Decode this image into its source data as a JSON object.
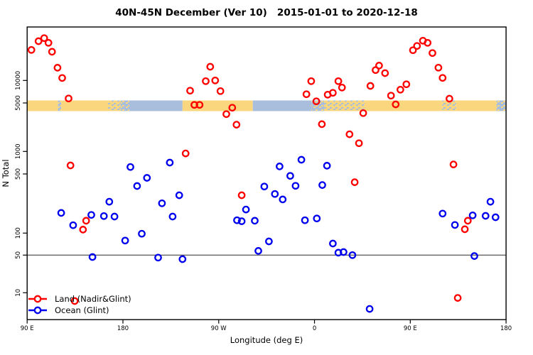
{
  "title": "40N-45N December (Ver 10)   2015-01-01 to 2020-12-18",
  "axes": {
    "x": {
      "label": "Longitude (deg E)",
      "ticks": [
        {
          "deg": 0,
          "label": "90 E"
        },
        {
          "deg": 90,
          "label": "180"
        },
        {
          "deg": 180,
          "label": "90 W"
        },
        {
          "deg": 270,
          "label": "0"
        },
        {
          "deg": 360,
          "label": "90 E"
        },
        {
          "deg": 450,
          "label": "180"
        }
      ]
    },
    "y": {
      "label": "N Total",
      "scale": "log",
      "ticks": [
        {
          "value": 10,
          "label": "10"
        },
        {
          "value": 50,
          "label": "50"
        },
        {
          "value": 100,
          "label": "100"
        },
        {
          "value": 500,
          "label": "500"
        },
        {
          "value": 1000,
          "label": "1000"
        },
        {
          "value": 5000,
          "label": "5000"
        },
        {
          "value": 10000,
          "label": "10000"
        }
      ]
    }
  },
  "legend": {
    "items": [
      {
        "label": "Land (Nadir&Glint)",
        "color": "#FF0000"
      },
      {
        "label": "Ocean (Glint)",
        "color": "#0000EE"
      }
    ]
  },
  "colors": {
    "land_point": "#FF0000",
    "ocean_point": "#0000EE",
    "land_strip": "#FAD77E",
    "ocean_strip": "#A9BEDC",
    "reference_line": "#2B2B2B",
    "axis": "#000000"
  },
  "reference_line": {
    "value": 50
  },
  "map_strip": {
    "center_value": 5000,
    "note_axis_origin_deg_e": 90,
    "segments": [
      {
        "from": 0,
        "to": 29,
        "type": "land"
      },
      {
        "from": 29,
        "to": 32,
        "type": "mixed-ocean"
      },
      {
        "from": 32,
        "to": 76,
        "type": "land"
      },
      {
        "from": 76,
        "to": 88,
        "type": "mixed-land"
      },
      {
        "from": 88,
        "to": 96,
        "type": "mixed-ocean"
      },
      {
        "from": 96,
        "to": 146,
        "type": "ocean"
      },
      {
        "from": 146,
        "to": 212,
        "type": "land"
      },
      {
        "from": 212,
        "to": 267,
        "type": "ocean"
      },
      {
        "from": 267,
        "to": 279,
        "type": "mixed-ocean"
      },
      {
        "from": 279,
        "to": 317,
        "type": "mixed-land"
      },
      {
        "from": 317,
        "to": 390,
        "type": "land"
      },
      {
        "from": 390,
        "to": 403,
        "type": "mixed-land"
      },
      {
        "from": 403,
        "to": 441,
        "type": "land"
      },
      {
        "from": 441,
        "to": 450,
        "type": "mixed-ocean"
      }
    ]
  },
  "chart_data": {
    "type": "scatter",
    "title": "40N-45N December (Ver 10)   2015-01-01 to 2020-12-18",
    "xlabel": "Longitude (deg E)",
    "ylabel": "N Total",
    "y_scale": "log",
    "x_axis": {
      "origin_label": "90 E",
      "span_deg": 450,
      "tick_step_deg": 90
    },
    "ylim": [
      10,
      10000
    ],
    "series": [
      {
        "name": "Land (Nadir&Glint)",
        "color": "#FF0000",
        "points": [
          [
            4,
            25600
          ],
          [
            10.7,
            33500
          ],
          [
            16,
            36800
          ],
          [
            20,
            31900
          ],
          [
            23.4,
            24200
          ],
          [
            28.5,
            14800
          ],
          [
            32.9,
            10800
          ],
          [
            38.9,
            5740
          ],
          [
            40.7,
            650
          ],
          [
            44.7,
            7
          ],
          [
            52.5,
            110
          ],
          [
            55.4,
            140
          ],
          [
            148.9,
            940
          ],
          [
            153.1,
            7300
          ],
          [
            157.1,
            4690
          ],
          [
            162,
            4690
          ],
          [
            167.8,
            9790
          ],
          [
            172,
            15250
          ],
          [
            176.7,
            10000
          ],
          [
            181.6,
            7210
          ],
          [
            187.2,
            3450
          ],
          [
            192.7,
            4270
          ],
          [
            196.7,
            2430
          ],
          [
            201.6,
            280
          ],
          [
            262.4,
            6540
          ],
          [
            266.9,
            9790
          ],
          [
            271.7,
            5260
          ],
          [
            276.9,
            2470
          ],
          [
            282.4,
            6460
          ],
          [
            287.3,
            6840
          ],
          [
            292.4,
            9790
          ],
          [
            295.8,
            8040
          ],
          [
            302.9,
            1770
          ],
          [
            307.8,
            400
          ],
          [
            311.8,
            1315
          ],
          [
            315.8,
            3570
          ],
          [
            322.5,
            8450
          ],
          [
            327.4,
            13770
          ],
          [
            330.7,
            15800
          ],
          [
            336.3,
            12530
          ],
          [
            341.9,
            6260
          ],
          [
            346.3,
            4770
          ],
          [
            350.7,
            7530
          ],
          [
            356.3,
            8880
          ],
          [
            362.5,
            25400
          ],
          [
            366.3,
            28950
          ],
          [
            371.9,
            34000
          ],
          [
            376.3,
            31900
          ],
          [
            380.8,
            23250
          ],
          [
            386.4,
            14820
          ],
          [
            390.4,
            10820
          ],
          [
            396.8,
            5700
          ],
          [
            400.6,
            670
          ],
          [
            404.6,
            8
          ],
          [
            411.3,
            111
          ],
          [
            414.1,
            140
          ]
        ]
      },
      {
        "name": "Ocean (Glint)",
        "color": "#0000EE",
        "points": [
          [
            32,
            173
          ],
          [
            43.2,
            124
          ],
          [
            60.3,
            164
          ],
          [
            61.4,
            46
          ],
          [
            72.1,
            159
          ],
          [
            77.2,
            235
          ],
          [
            82.1,
            157
          ],
          [
            92.1,
            79
          ],
          [
            97,
            620
          ],
          [
            103.3,
            360
          ],
          [
            107.7,
            98
          ],
          [
            112.6,
            450
          ],
          [
            123.1,
            45
          ],
          [
            126.7,
            225
          ],
          [
            134,
            710
          ],
          [
            136.7,
            157
          ],
          [
            142.9,
            280
          ],
          [
            146,
            42
          ],
          [
            197.2,
            142
          ],
          [
            201.6,
            138
          ],
          [
            205.6,
            190
          ],
          [
            213.9,
            140
          ],
          [
            217.2,
            57
          ],
          [
            222.8,
            355
          ],
          [
            227.2,
            77
          ],
          [
            232.8,
            290
          ],
          [
            237.2,
            630
          ],
          [
            240.1,
            250
          ],
          [
            247.2,
            475
          ],
          [
            252.2,
            362
          ],
          [
            257.7,
            775
          ],
          [
            261,
            142
          ],
          [
            272.2,
            149
          ],
          [
            277.3,
            370
          ],
          [
            281.7,
            645
          ],
          [
            287.3,
            72
          ],
          [
            292.4,
            54
          ],
          [
            297.3,
            55
          ],
          [
            305.6,
            50
          ],
          [
            321.8,
            5
          ],
          [
            390.4,
            170
          ],
          [
            401.9,
            125
          ],
          [
            418.6,
            162
          ],
          [
            420.2,
            48
          ],
          [
            430.8,
            160
          ],
          [
            435.3,
            235
          ],
          [
            440.1,
            154
          ]
        ]
      }
    ]
  }
}
